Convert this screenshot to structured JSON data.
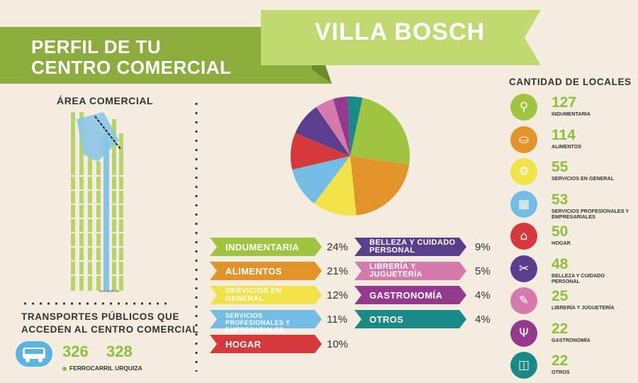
{
  "header": {
    "line1": "PERFIL DE TU",
    "line2": "CENTRO COMERCIAL",
    "place": "VILLA BOSCH"
  },
  "area": {
    "title": "ÁREA COMERCIAL",
    "map_label": "SAN MARTÍN"
  },
  "transport": {
    "title_line1": "TRANSPORTES PÚBLICOS QUE",
    "title_line2": "ACCEDEN AL CENTRO COMERCIAL",
    "routes": [
      "326",
      "328"
    ],
    "rail": "FERROCARRIL URQUIZA",
    "icon": "bus-icon"
  },
  "chart_data": {
    "type": "pie",
    "categories": [
      "INDUMENTARIA",
      "ALIMENTOS",
      "SERVICIOS EN GENERAL",
      "SERVICIOS PROFESIONALES Y EMPRESARIALES",
      "HOGAR",
      "BELLEZA Y CUIDADO PERSONAL",
      "LIBRERÍA Y JUGUETERÍA",
      "GASTRONOMÍA",
      "OTROS"
    ],
    "values": [
      24,
      21,
      12,
      11,
      10,
      9,
      5,
      4,
      4
    ],
    "labels": [
      "24%",
      "21%",
      "12%",
      "11%",
      "10%",
      "9%",
      "5%",
      "4%",
      "4%"
    ],
    "colors": [
      "#9fc540",
      "#e2942a",
      "#f2e24a",
      "#73bce4",
      "#d5393c",
      "#5a3f8f",
      "#d679ad",
      "#95398e",
      "#1a8a86"
    ]
  },
  "locales": {
    "title": "CANTIDAD DE LOCALES",
    "items": [
      {
        "count": "127",
        "label": "INDUMENTARIA",
        "color": "#9fc540",
        "icon": "hanger-icon",
        "glyph": "⚲"
      },
      {
        "count": "114",
        "label": "ALIMENTOS",
        "color": "#e2942a",
        "icon": "basket-icon",
        "glyph": "⛀"
      },
      {
        "count": "55",
        "label": "SERVICIOS EN GENERAL",
        "color": "#f2e24a",
        "icon": "service-icon",
        "glyph": "⚙"
      },
      {
        "count": "53",
        "label": "SERVICIOS PROFESIONALES Y EMPRESARIALES",
        "color": "#73bce4",
        "icon": "calculator-icon",
        "glyph": "▦"
      },
      {
        "count": "50",
        "label": "HOGAR",
        "color": "#d5393c",
        "icon": "home-icon",
        "glyph": "⌂"
      },
      {
        "count": "48",
        "label": "BELLEZA Y CUIDADO PERSONAL",
        "color": "#5a3f8f",
        "icon": "scissors-icon",
        "glyph": "✂"
      },
      {
        "count": "25",
        "label": "LIBRERÍA Y JUGUETERÍA",
        "color": "#d679ad",
        "icon": "notebook-icon",
        "glyph": "✎"
      },
      {
        "count": "22",
        "label": "GASTRONOMÍA",
        "color": "#95398e",
        "icon": "cutlery-icon",
        "glyph": "Ψ"
      },
      {
        "count": "22",
        "label": "OTROS",
        "color": "#1a8a86",
        "icon": "bag-icon",
        "glyph": "◫"
      }
    ]
  }
}
